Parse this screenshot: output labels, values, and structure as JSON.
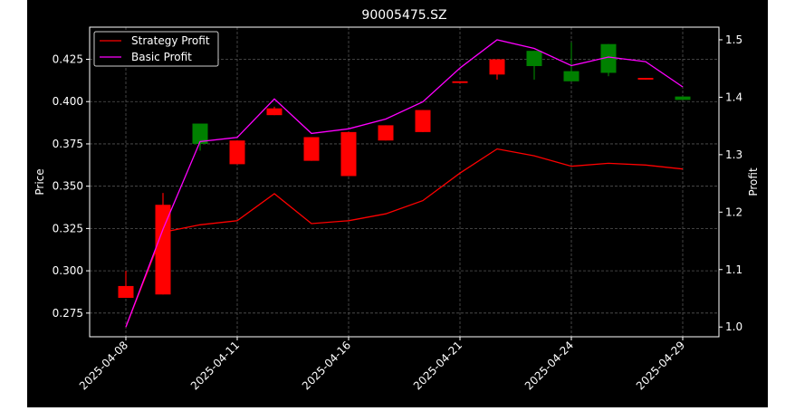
{
  "chart_data": {
    "type": "candlestick",
    "title": "90005475.SZ",
    "ylabel_left": "Price",
    "ylabel_right": "Profit",
    "ylim_left": [
      0.261,
      0.444
    ],
    "ylim_right": [
      0.983,
      1.522
    ],
    "left_ticks": [
      "0.275",
      "0.300",
      "0.325",
      "0.350",
      "0.375",
      "0.400",
      "0.425"
    ],
    "right_ticks": [
      "1.0",
      "1.1",
      "1.2",
      "1.3",
      "1.4",
      "1.5"
    ],
    "x_tick_labels": [
      "2025-04-08",
      "2025-04-11",
      "2025-04-16",
      "2025-04-21",
      "2025-04-24",
      "2025-04-29"
    ],
    "x_tick_indices": [
      0,
      3,
      6,
      9,
      12,
      15
    ],
    "grid": true,
    "legend_position": "top-left",
    "colors": {
      "up": "#008000",
      "down": "#ff0000",
      "strategy": "#ff0000",
      "basic": "#ff00ff",
      "grid": "#555555",
      "axes": "#ffffff"
    },
    "candles": [
      {
        "open": 0.291,
        "close": 0.284,
        "high": 0.3,
        "low": 0.284
      },
      {
        "open": 0.339,
        "close": 0.286,
        "high": 0.346,
        "low": 0.286
      },
      {
        "open": 0.375,
        "close": 0.387,
        "high": 0.387,
        "low": 0.371
      },
      {
        "open": 0.377,
        "close": 0.363,
        "high": 0.377,
        "low": 0.363
      },
      {
        "open": 0.396,
        "close": 0.392,
        "high": 0.397,
        "low": 0.392
      },
      {
        "open": 0.379,
        "close": 0.365,
        "high": 0.379,
        "low": 0.365
      },
      {
        "open": 0.382,
        "close": 0.356,
        "high": 0.382,
        "low": 0.356
      },
      {
        "open": 0.386,
        "close": 0.377,
        "high": 0.386,
        "low": 0.377
      },
      {
        "open": 0.395,
        "close": 0.382,
        "high": 0.395,
        "low": 0.382
      },
      {
        "open": 0.412,
        "close": 0.411,
        "high": 0.412,
        "low": 0.411
      },
      {
        "open": 0.425,
        "close": 0.416,
        "high": 0.425,
        "low": 0.413
      },
      {
        "open": 0.421,
        "close": 0.43,
        "high": 0.43,
        "low": 0.413
      },
      {
        "open": 0.412,
        "close": 0.418,
        "high": 0.435,
        "low": 0.412
      },
      {
        "open": 0.417,
        "close": 0.434,
        "high": 0.434,
        "low": 0.415
      },
      {
        "open": 0.414,
        "close": 0.413,
        "high": 0.414,
        "low": 0.413
      },
      {
        "open": 0.401,
        "close": 0.403,
        "high": 0.403,
        "low": 0.401
      }
    ],
    "series": [
      {
        "name": "Strategy Profit",
        "values": [
          1.0,
          1.165,
          1.178,
          1.185,
          1.232,
          1.18,
          1.185,
          1.197,
          1.22,
          1.268,
          1.31,
          1.298,
          1.28,
          1.285,
          1.282,
          1.275
        ]
      },
      {
        "name": "Basic Profit",
        "values": [
          1.0,
          1.17,
          1.323,
          1.33,
          1.397,
          1.337,
          1.345,
          1.362,
          1.392,
          1.451,
          1.5,
          1.485,
          1.455,
          1.47,
          1.462,
          1.418
        ]
      }
    ]
  }
}
